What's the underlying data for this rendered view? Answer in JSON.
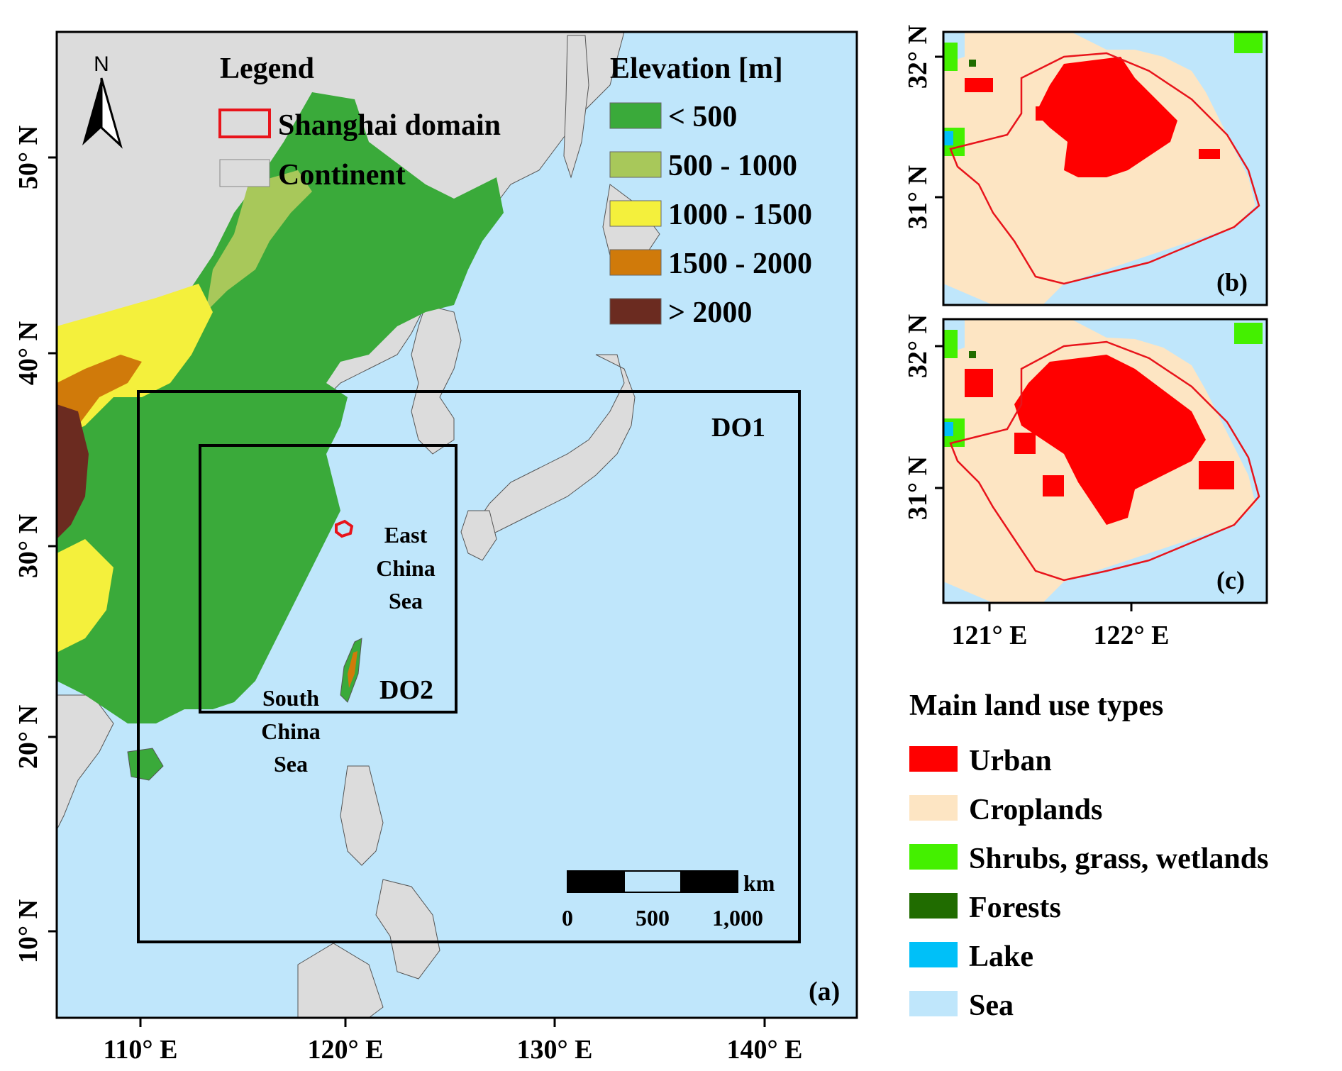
{
  "main_map": {
    "panel_label": "(a)",
    "north_label": "N",
    "legend": {
      "title": "Legend",
      "items": [
        {
          "label": "Shanghai domain",
          "style": "outline",
          "color": "#e8141b"
        },
        {
          "label": "Continent",
          "style": "fill",
          "color": "#dcdcdc"
        }
      ]
    },
    "elevation": {
      "title": "Elevation [m]",
      "classes": [
        {
          "label": "< 500",
          "color": "#3aaa3a"
        },
        {
          "label": "500 - 1000",
          "color": "#a8c85a"
        },
        {
          "label": "1000 - 1500",
          "color": "#f4f03c"
        },
        {
          "label": "1500 - 2000",
          "color": "#d07a0a"
        },
        {
          "label": "> 2000",
          "color": "#6b2b20"
        }
      ]
    },
    "domains": [
      {
        "label": "DO1"
      },
      {
        "label": "DO2"
      }
    ],
    "place_labels": {
      "east_china_sea": [
        "East",
        "China",
        "Sea"
      ],
      "south_china_sea": [
        "South",
        "China",
        "Sea"
      ]
    },
    "scale_bar": {
      "unit": "km",
      "ticks": [
        "0",
        "500",
        "1,000"
      ]
    },
    "x_ticks": [
      "110° E",
      "120° E",
      "130° E",
      "140° E"
    ],
    "y_ticks": [
      "10° N",
      "20° N",
      "30° N",
      "40° N",
      "50° N"
    ],
    "colors": {
      "sea": "#bfe6fb",
      "continent": "#dcdcdc",
      "frame": "#000000"
    }
  },
  "inset_maps": [
    {
      "panel_label": "(b)",
      "y_ticks": [
        "31° N",
        "32° N"
      ]
    },
    {
      "panel_label": "(c)",
      "y_ticks": [
        "31° N",
        "32° N"
      ]
    }
  ],
  "inset_x_ticks": [
    "121° E",
    "122° E"
  ],
  "land_use": {
    "title": "Main land use types",
    "items": [
      {
        "label": "Urban",
        "color": "#ff0000"
      },
      {
        "label": "Croplands",
        "color": "#fde5c3"
      },
      {
        "label": "Shrubs, grass, wetlands",
        "color": "#44f000"
      },
      {
        "label": "Forests",
        "color": "#206c00"
      },
      {
        "label": "Lake",
        "color": "#00c0f8"
      },
      {
        "label": "Sea",
        "color": "#bfe6fb"
      }
    ]
  }
}
